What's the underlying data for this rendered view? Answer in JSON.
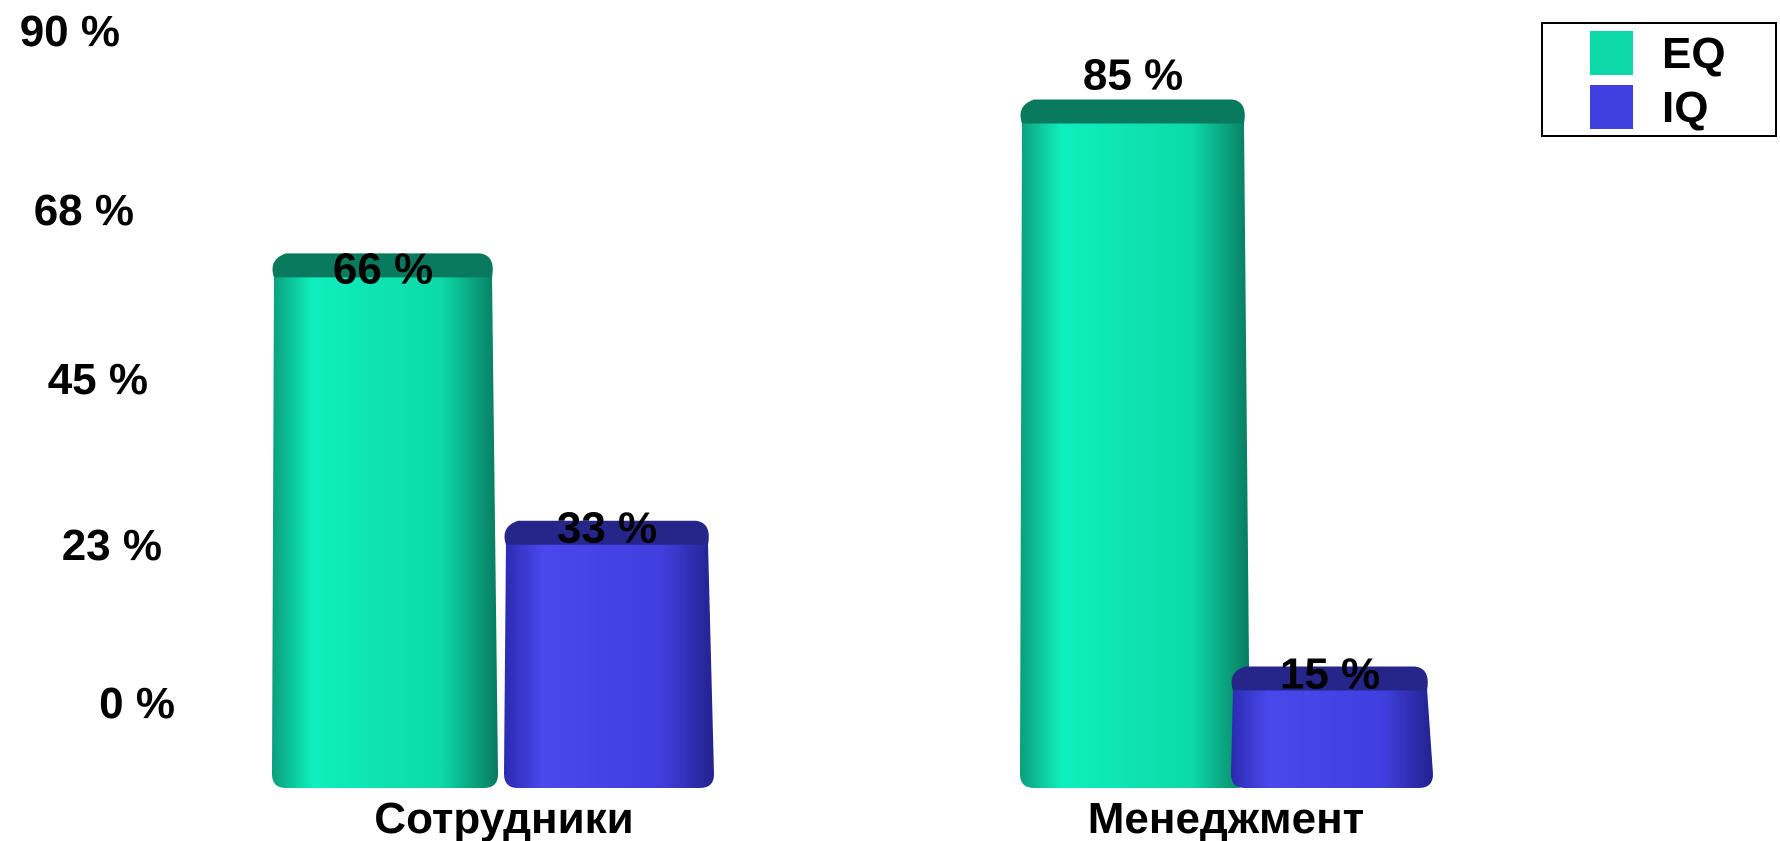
{
  "chart_data": {
    "type": "bar",
    "title": "",
    "xlabel": "",
    "ylabel": "",
    "categories": [
      "Сотрудники",
      "Менеджмент"
    ],
    "series": [
      {
        "name": "EQ",
        "values": [
          66,
          85
        ],
        "labels": [
          "66 %",
          "85 %"
        ],
        "color": "#0dd9a8"
      },
      {
        "name": "IQ",
        "values": [
          33,
          15
        ],
        "labels": [
          "33 %",
          "15 %"
        ],
        "color": "#3f3fe0"
      }
    ],
    "y_ticks": [
      {
        "value": 0,
        "label": "0 %"
      },
      {
        "value": 22.5,
        "label": "23 %"
      },
      {
        "value": 45,
        "label": "45 %"
      },
      {
        "value": 67.5,
        "label": "68 %"
      },
      {
        "value": 90,
        "label": "90 %"
      }
    ],
    "ylim": [
      0,
      90
    ],
    "grid": false,
    "legend_position": "top-right",
    "style": "3d"
  }
}
